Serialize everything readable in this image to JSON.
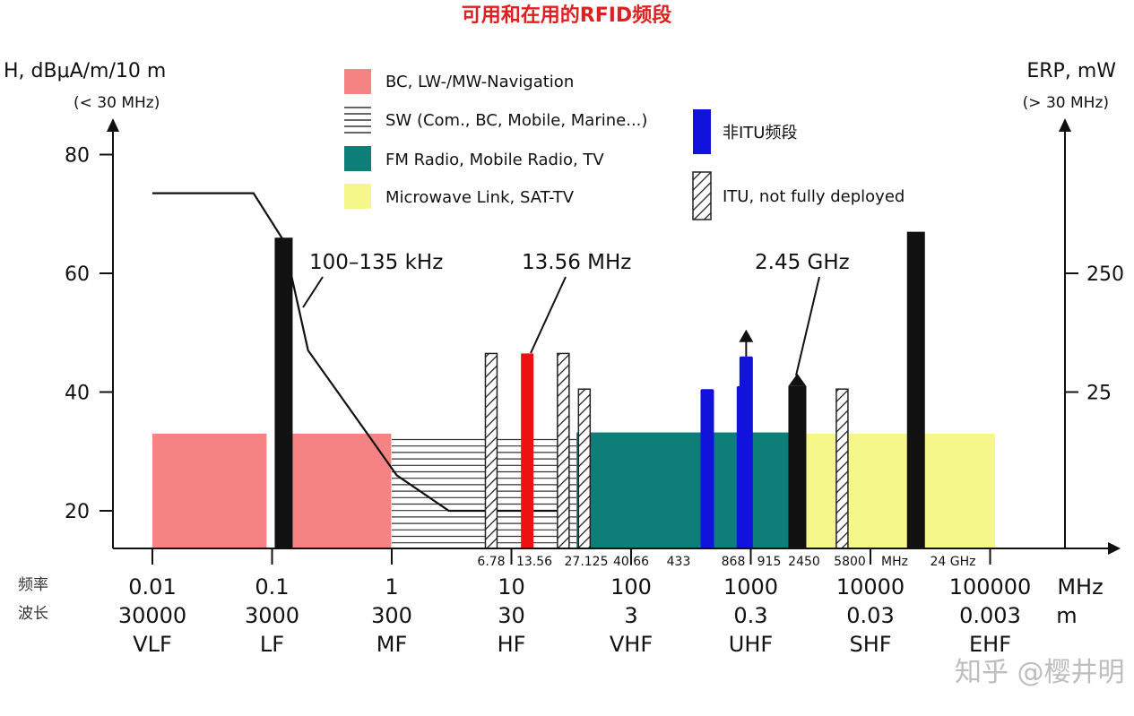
{
  "title": "可用和在用的RFID频段",
  "watermark": "知乎 @樱井明",
  "left_axis": {
    "title": "H, dBμA/m/10 m",
    "subtitle": "(< 30 MHz)",
    "ticks": [
      20,
      40,
      60,
      80
    ]
  },
  "right_axis": {
    "title": "ERP, mW",
    "subtitle": "(> 30 MHz)",
    "ticks": [
      "25",
      "250"
    ]
  },
  "row_labels": {
    "frequency": "频率",
    "wavelength": "波长"
  },
  "x_axis": {
    "unit_freq": "MHz",
    "unit_wave": "m",
    "decades": [
      {
        "freq": "0.01",
        "wave": "30000",
        "band": "VLF"
      },
      {
        "freq": "0.1",
        "wave": "3000",
        "band": "LF"
      },
      {
        "freq": "1",
        "wave": "300",
        "band": "MF"
      },
      {
        "freq": "10",
        "wave": "30",
        "band": "HF"
      },
      {
        "freq": "100",
        "wave": "3",
        "band": "VHF"
      },
      {
        "freq": "1000",
        "wave": "0.3",
        "band": "UHF"
      },
      {
        "freq": "10000",
        "wave": "0.03",
        "band": "SHF"
      },
      {
        "freq": "100000",
        "wave": "0.003",
        "band": "EHF"
      }
    ],
    "small_ticks": [
      "6.78",
      "13.56",
      "27.125",
      "40.66",
      "433",
      "868",
      "915",
      "2450",
      "5800",
      "MHz",
      "24 GHz"
    ]
  },
  "legend": [
    {
      "key": "pink",
      "label": "BC, LW-/MW-Navigation",
      "color": "#f58383"
    },
    {
      "key": "hlines",
      "label": "SW (Com., BC, Mobile, Marine...)",
      "color": "#333333"
    },
    {
      "key": "teal",
      "label": "FM Radio, Mobile Radio, TV",
      "color": "#0d7f78"
    },
    {
      "key": "yellow",
      "label": "Microwave Link, SAT-TV",
      "color": "#f6f78a"
    },
    {
      "key": "blue",
      "label": "非ITU频段",
      "color": "#1212dd"
    },
    {
      "key": "hatch",
      "label": "ITU, not fully deployed",
      "color": "#222222"
    }
  ],
  "annotations": [
    "100–135 kHz",
    "13.56 MHz",
    "2.45 GHz"
  ],
  "colors": {
    "red": "#ee1111",
    "black": "#111111"
  },
  "chart_data": {
    "type": "bar",
    "title": "可用和在用的RFID频段",
    "x_scale": "log",
    "x_unit": "MHz",
    "y_left": {
      "label": "H, dBμA/m/10 m",
      "note": "< 30 MHz",
      "ylim": [
        13.5,
        85
      ]
    },
    "y_right": {
      "label": "ERP, mW",
      "note": "> 30 MHz",
      "ticks": {
        "25": 40,
        "250": 60
      }
    },
    "background_bands": [
      {
        "type": "pink",
        "from": 0.01,
        "to": 0.09,
        "level": 33
      },
      {
        "type": "pink",
        "from": 0.135,
        "to": 0.99,
        "level": 33
      },
      {
        "type": "hlines",
        "from": 1,
        "to": 35,
        "level": 32
      },
      {
        "type": "teal",
        "from": 35,
        "to": 2200,
        "level": 33.2
      },
      {
        "type": "yellow",
        "from": 2600,
        "to": 110000,
        "level": 33
      }
    ],
    "field_strength_limit_line": [
      [
        0.01,
        73.5
      ],
      [
        0.07,
        73.5
      ],
      [
        0.125,
        65.5
      ],
      [
        0.2,
        47
      ],
      [
        0.6,
        33.5
      ],
      [
        1.1,
        26
      ],
      [
        3,
        20
      ],
      [
        25,
        20
      ]
    ],
    "rfid_bands": [
      {
        "freq": 0.125,
        "label": "100–135 kHz",
        "value": 66,
        "kind": "black"
      },
      {
        "freq": 6.78,
        "value": 46.5,
        "kind": "hatch"
      },
      {
        "freq": 13.56,
        "label": "13.56 MHz",
        "value": 46.5,
        "kind": "red"
      },
      {
        "freq": 27.125,
        "value": 46.5,
        "kind": "hatch"
      },
      {
        "freq": 40.66,
        "value": 40.5,
        "kind": "hatch"
      },
      {
        "freq": 433,
        "value": 40.5,
        "kind": "blue"
      },
      {
        "freq": 868,
        "value": 41,
        "kind": "blue"
      },
      {
        "freq": 915,
        "value": 46,
        "kind": "blue",
        "arrow": true
      },
      {
        "freq": 2450,
        "label": "2.45 GHz",
        "value": 41,
        "kind": "black",
        "arrow": true
      },
      {
        "freq": 5800,
        "value": 40.5,
        "kind": "hatch"
      },
      {
        "freq": 24000,
        "value": 67,
        "kind": "black"
      }
    ]
  }
}
